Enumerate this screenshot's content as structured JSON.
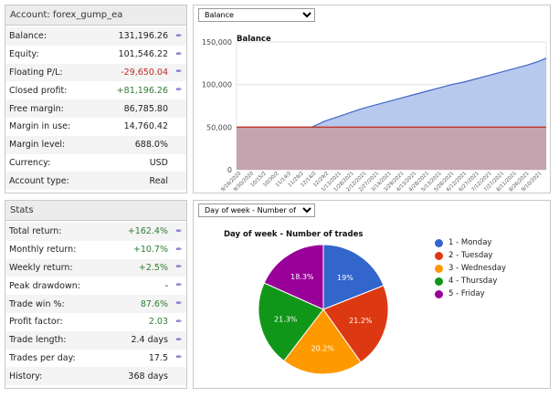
{
  "account_panel": {
    "title": "Account: forex_gump_ea",
    "rows": [
      {
        "label": "Balance:",
        "value": "131,196.26",
        "style": "normal",
        "edit": true
      },
      {
        "label": "Equity:",
        "value": "101,546.22",
        "style": "normal",
        "edit": true
      },
      {
        "label": "Floating P/L:",
        "value": "-29,650.04",
        "style": "neg",
        "edit": true
      },
      {
        "label": "Closed profit:",
        "value": "+81,196.26",
        "style": "pos",
        "edit": true
      },
      {
        "label": "Free margin:",
        "value": "86,785.80",
        "style": "normal",
        "edit": false
      },
      {
        "label": "Margin in use:",
        "value": "14,760.42",
        "style": "normal",
        "edit": false
      },
      {
        "label": "Margin level:",
        "value": "688.0%",
        "style": "normal",
        "edit": false
      },
      {
        "label": "Currency:",
        "value": "USD",
        "style": "normal",
        "edit": false
      },
      {
        "label": "Account type:",
        "value": "Real",
        "style": "normal",
        "edit": false
      }
    ]
  },
  "stats_panel": {
    "title": "Stats",
    "rows": [
      {
        "label": "Total return:",
        "value": "+162.4%",
        "style": "pos",
        "edit": true
      },
      {
        "label": "Monthly return:",
        "value": "+10.7%",
        "style": "pos",
        "edit": true
      },
      {
        "label": "Weekly return:",
        "value": "+2.5%",
        "style": "pos",
        "edit": true
      },
      {
        "label": "Peak drawdown:",
        "value": "-",
        "style": "normal",
        "edit": true
      },
      {
        "label": "Trade win %:",
        "value": "87.6%",
        "style": "pos",
        "edit": true
      },
      {
        "label": "Profit factor:",
        "value": "2.03",
        "style": "pos",
        "edit": true
      },
      {
        "label": "Trade length:",
        "value": "2.4 days",
        "style": "normal",
        "edit": true
      },
      {
        "label": "Trades per day:",
        "value": "17.5",
        "style": "normal",
        "edit": true
      },
      {
        "label": "History:",
        "value": "368 days",
        "style": "normal",
        "edit": false
      }
    ]
  },
  "icons": {
    "edit": "pencil-icon"
  },
  "colors": {
    "positive": "#2e7d32",
    "negative": "#c62828",
    "balance_fill": "#b8c9ee",
    "balance_line": "#3e66c6",
    "deposit_line": "#c0392b"
  },
  "balance_panel": {
    "selector_value": "Balance",
    "selector_options": [
      "Balance"
    ]
  },
  "pie_panel": {
    "selector_value": "Day of week - Number of trades",
    "selector_options": [
      "Day of week - Number of trades"
    ]
  },
  "chart_data": [
    {
      "type": "area",
      "title": "Balance",
      "xlabel": "",
      "ylabel": "",
      "ylim": [
        0,
        150000
      ],
      "yticks": [
        "0",
        "50,000",
        "100,000",
        "150,000"
      ],
      "xticks": [
        "9/16/2020",
        "9/30/2020",
        "10/15/2",
        "10/30/2",
        "11/14/2",
        "11/29/2",
        "12/14/2",
        "12/29/2",
        "1/13/2021",
        "1/28/2021",
        "2/12/2021",
        "2/27/2021",
        "3/14/2021",
        "3/29/2021",
        "4/13/2021",
        "4/28/2021",
        "5/13/2021",
        "5/28/2021",
        "6/12/2021",
        "6/27/2021",
        "7/12/2021",
        "7/27/2021",
        "8/11/2021",
        "8/26/2021",
        "9/10/2021"
      ],
      "grid": true,
      "series": [
        {
          "style": "area",
          "x": [
            "9/16/2020",
            "12/14/2020",
            "12/29/2020",
            "1/13/2021",
            "1/28/2021",
            "2/12/2021",
            "2/27/2021",
            "3/14/2021",
            "3/29/2021",
            "4/13/2021",
            "4/28/2021",
            "5/13/2021",
            "5/28/2021",
            "6/12/2021",
            "6/27/2021",
            "7/12/2021",
            "7/27/2021",
            "8/11/2021",
            "8/26/2021",
            "9/10/2021",
            "9/17/2021"
          ],
          "values": [
            50000,
            50000,
            57000,
            62000,
            67000,
            72000,
            76000,
            80000,
            84000,
            88000,
            92000,
            96000,
            100000,
            103000,
            107000,
            111000,
            115000,
            119000,
            123000,
            128000,
            131000
          ]
        },
        {
          "style": "line",
          "x": [
            "9/16/2020",
            "9/17/2021"
          ],
          "values": [
            50000,
            50000
          ]
        }
      ]
    },
    {
      "type": "pie",
      "title": "Day of week - Number of trades",
      "categories": [
        "1 - Monday",
        "2 - Tuesday",
        "3 - Wednesday",
        "4 - Thursday",
        "5 - Friday"
      ],
      "values": [
        19,
        21.2,
        20.2,
        21.3,
        18.3
      ],
      "labels": [
        "19%",
        "21.2%",
        "20.2%",
        "21.3%",
        "18.3%"
      ],
      "colors": [
        "#3366cc",
        "#dc3912",
        "#ff9900",
        "#109618",
        "#990099"
      ],
      "legend": "right"
    }
  ]
}
